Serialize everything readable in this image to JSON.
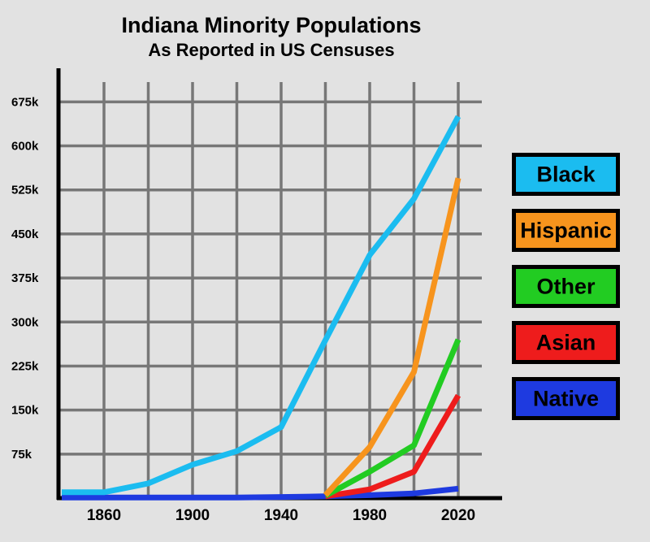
{
  "chart_data": {
    "type": "line",
    "title": "Indiana Minority Populations",
    "subtitle": "As Reported in US Censuses",
    "xlabel": "",
    "ylabel": "",
    "x": [
      1840,
      1860,
      1880,
      1900,
      1920,
      1940,
      1960,
      1980,
      2000,
      2020
    ],
    "xlim": [
      1840,
      2040
    ],
    "ylim": [
      0,
      720
    ],
    "x_tick_labels": [
      "1860",
      "1900",
      "1940",
      "1980",
      "2020"
    ],
    "x_tick_values": [
      1860,
      1900,
      1940,
      1980,
      2020
    ],
    "y_tick_labels": [
      "75k",
      "150k",
      "225k",
      "300k",
      "375k",
      "450k",
      "525k",
      "600k",
      "675k"
    ],
    "y_tick_values": [
      75,
      150,
      225,
      300,
      375,
      450,
      525,
      600,
      675
    ],
    "grid": true,
    "legend_position": "right",
    "series": [
      {
        "name": "Black",
        "color": "#1bbcf0",
        "points": [
          [
            1840,
            10
          ],
          [
            1860,
            10
          ],
          [
            1880,
            25
          ],
          [
            1900,
            57
          ],
          [
            1920,
            80
          ],
          [
            1940,
            121
          ],
          [
            1960,
            269
          ],
          [
            1980,
            414
          ],
          [
            2000,
            510
          ],
          [
            2020,
            650
          ]
        ]
      },
      {
        "name": "Hispanic",
        "color": "#f7941d",
        "points": [
          [
            1960,
            5
          ],
          [
            1980,
            87
          ],
          [
            2000,
            215
          ],
          [
            2020,
            545
          ]
        ]
      },
      {
        "name": "Other",
        "color": "#22cc22",
        "points": [
          [
            1960,
            4
          ],
          [
            1980,
            45
          ],
          [
            2000,
            90
          ],
          [
            2020,
            270
          ]
        ]
      },
      {
        "name": "Asian",
        "color": "#ee1c1c",
        "points": [
          [
            1960,
            3
          ],
          [
            1980,
            15
          ],
          [
            2000,
            45
          ],
          [
            2020,
            175
          ]
        ]
      },
      {
        "name": "Native",
        "color": "#1e3ae0",
        "points": [
          [
            1840,
            1
          ],
          [
            1860,
            1
          ],
          [
            1880,
            1
          ],
          [
            1900,
            1
          ],
          [
            1920,
            1
          ],
          [
            1940,
            2
          ],
          [
            1960,
            3
          ],
          [
            1980,
            5
          ],
          [
            2000,
            8
          ],
          [
            2020,
            16
          ]
        ]
      }
    ]
  }
}
